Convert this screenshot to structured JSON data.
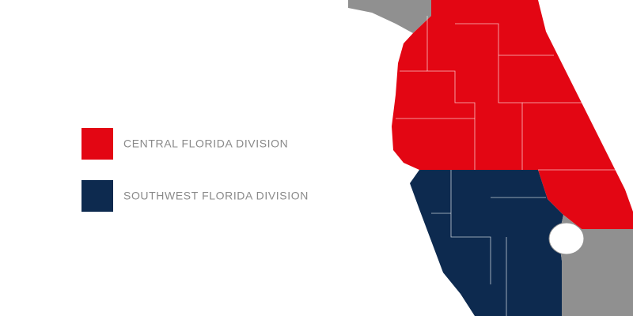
{
  "legend": [
    {
      "label": "CENTRAL FLORIDA DIVISION",
      "color": "#e30613"
    },
    {
      "label": "SOUTHWEST FLORIDA DIVISION",
      "color": "#0d2a4f"
    }
  ]
}
